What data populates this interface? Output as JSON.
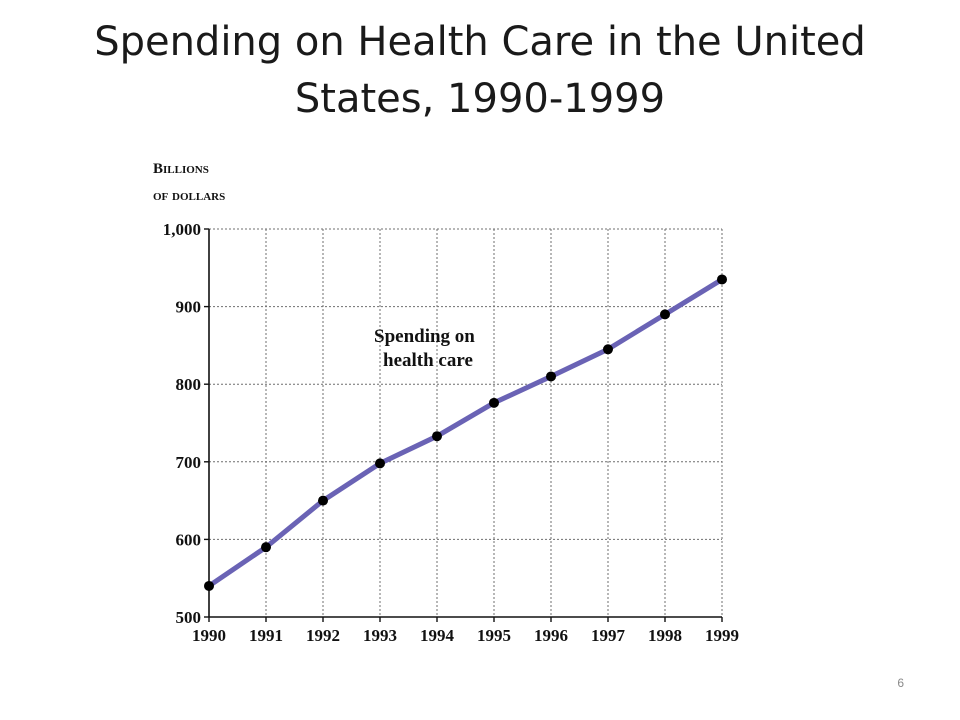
{
  "slide": {
    "title": "Spending on Health Care in the United States, 1990-1999",
    "page_number": "6"
  },
  "chart_data": {
    "type": "line",
    "title": "",
    "ylabel_line1": "Billions",
    "ylabel_line2": "of dollars",
    "xlabel": "",
    "x": [
      "1990",
      "1991",
      "1992",
      "1993",
      "1994",
      "1995",
      "1996",
      "1997",
      "1998",
      "1999"
    ],
    "series": [
      {
        "values": [
          540,
          590,
          650,
          698,
          733,
          776,
          810,
          845,
          890,
          935
        ]
      }
    ],
    "annotation_line1": "Spending on",
    "annotation_line2": "health care",
    "ylim": [
      500,
      1000
    ],
    "yticks": [
      500,
      600,
      700,
      800,
      900,
      1000
    ],
    "ytick_labels": [
      "500",
      "600",
      "700",
      "800",
      "900",
      "1,000"
    ],
    "grid": true,
    "line_color": "#6a63b5",
    "marker_color": "#000000"
  }
}
